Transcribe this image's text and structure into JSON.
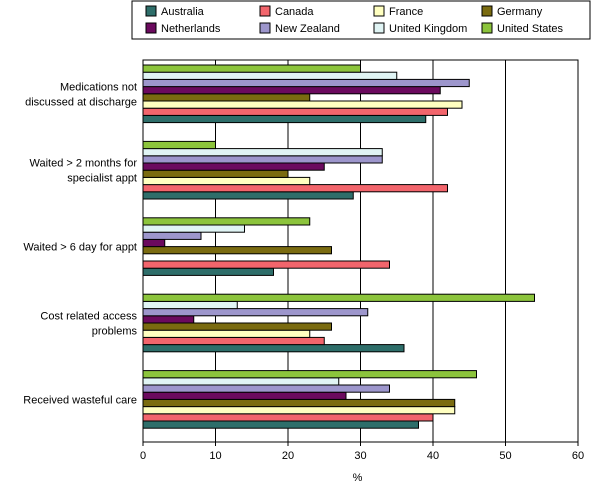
{
  "chart_data": {
    "type": "bar",
    "orientation": "horizontal",
    "categories": [
      [
        "Medications not",
        "discussed at discharge"
      ],
      [
        "Waited > 2 months for",
        "specialist appt"
      ],
      [
        "Waited > 6 day for appt"
      ],
      [
        "Cost related access",
        "problems"
      ],
      [
        "Received wasteful care"
      ]
    ],
    "xlabel": "%",
    "xlim": [
      0,
      60
    ],
    "xticks": [
      0,
      10,
      20,
      30,
      40,
      50,
      60
    ],
    "grid": "vertical",
    "legend_position": "top",
    "series": [
      {
        "name": "Australia",
        "color": "#2e6e6a",
        "values": [
          39,
          29,
          18,
          36,
          38
        ]
      },
      {
        "name": "Canada",
        "color": "#f2656c",
        "values": [
          42,
          42,
          34,
          25,
          40
        ]
      },
      {
        "name": "France",
        "color": "#ffffc0",
        "values": [
          44,
          23,
          null,
          23,
          43
        ]
      },
      {
        "name": "Germany",
        "color": "#7a6b10",
        "values": [
          23,
          20,
          26,
          26,
          43
        ]
      },
      {
        "name": "Netherlands",
        "color": "#6b0a5e",
        "values": [
          41,
          25,
          3,
          7,
          28
        ]
      },
      {
        "name": "New Zealand",
        "color": "#9d96cc",
        "values": [
          45,
          33,
          8,
          31,
          34
        ]
      },
      {
        "name": "United Kingdom",
        "color": "#e0f4f4",
        "values": [
          35,
          33,
          14,
          13,
          27
        ]
      },
      {
        "name": "United States",
        "color": "#8cc43c",
        "values": [
          30,
          10,
          23,
          54,
          46
        ]
      }
    ]
  }
}
